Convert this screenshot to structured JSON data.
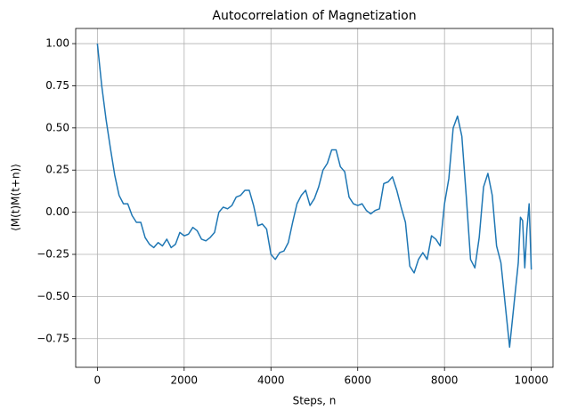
{
  "chart_data": {
    "type": "line",
    "title": "Autocorrelation of Magnetization",
    "xlabel": "Steps, n",
    "ylabel": "⟨M(t)M(t+n)⟩",
    "x": [
      0,
      100,
      200,
      300,
      400,
      500,
      600,
      700,
      800,
      900,
      1000,
      1100,
      1200,
      1300,
      1400,
      1500,
      1600,
      1700,
      1800,
      1900,
      2000,
      2100,
      2200,
      2300,
      2400,
      2500,
      2600,
      2700,
      2800,
      2900,
      3000,
      3100,
      3200,
      3300,
      3400,
      3500,
      3600,
      3700,
      3800,
      3900,
      4000,
      4100,
      4200,
      4300,
      4400,
      4500,
      4600,
      4700,
      4800,
      4900,
      5000,
      5100,
      5200,
      5300,
      5400,
      5500,
      5600,
      5700,
      5800,
      5900,
      6000,
      6100,
      6200,
      6300,
      6400,
      6500,
      6600,
      6700,
      6800,
      6900,
      7000,
      7100,
      7200,
      7300,
      7400,
      7500,
      7600,
      7700,
      7800,
      7900,
      8000,
      8100,
      8200,
      8300,
      8400,
      8500,
      8600,
      8700,
      8800,
      8900,
      9000,
      9100,
      9200,
      9300,
      9400,
      9500,
      9600,
      9700,
      9750,
      9800,
      9850,
      9900,
      9950,
      10000
    ],
    "series": [
      {
        "color": "#1f77b4",
        "values": [
          1.0,
          0.75,
          0.55,
          0.38,
          0.22,
          0.1,
          0.05,
          0.05,
          -0.02,
          -0.06,
          -0.06,
          -0.15,
          -0.19,
          -0.21,
          -0.18,
          -0.2,
          -0.16,
          -0.21,
          -0.19,
          -0.12,
          -0.14,
          -0.13,
          -0.09,
          -0.11,
          -0.16,
          -0.17,
          -0.15,
          -0.12,
          0.0,
          0.03,
          0.02,
          0.04,
          0.09,
          0.1,
          0.13,
          0.13,
          0.04,
          -0.08,
          -0.07,
          -0.1,
          -0.25,
          -0.28,
          -0.24,
          -0.23,
          -0.18,
          -0.06,
          0.05,
          0.1,
          0.13,
          0.04,
          0.08,
          0.15,
          0.25,
          0.29,
          0.37,
          0.37,
          0.27,
          0.24,
          0.09,
          0.05,
          0.04,
          0.05,
          0.01,
          -0.01,
          0.01,
          0.02,
          0.17,
          0.18,
          0.21,
          0.13,
          0.03,
          -0.06,
          -0.32,
          -0.36,
          -0.28,
          -0.24,
          -0.28,
          -0.14,
          -0.16,
          -0.2,
          0.05,
          0.2,
          0.5,
          0.57,
          0.45,
          0.1,
          -0.28,
          -0.33,
          -0.15,
          0.15,
          0.23,
          0.1,
          -0.2,
          -0.3,
          -0.55,
          -0.8,
          -0.55,
          -0.3,
          -0.03,
          -0.05,
          -0.33,
          -0.1,
          0.05,
          -0.34
        ]
      }
    ],
    "xlim": [
      -500,
      10500
    ],
    "ylim": [
      -0.92,
      1.09
    ],
    "xticks": [
      0,
      2000,
      4000,
      6000,
      8000,
      10000
    ],
    "yticks": [
      {
        "value": -0.75,
        "label": "−0.75"
      },
      {
        "value": -0.5,
        "label": "−0.50"
      },
      {
        "value": -0.25,
        "label": "−0.25"
      },
      {
        "value": 0,
        "label": "0.00"
      },
      {
        "value": 0.25,
        "label": "0.25"
      },
      {
        "value": 0.5,
        "label": "0.50"
      },
      {
        "value": 0.75,
        "label": "0.75"
      },
      {
        "value": 1,
        "label": "1.00"
      }
    ],
    "grid": true
  }
}
